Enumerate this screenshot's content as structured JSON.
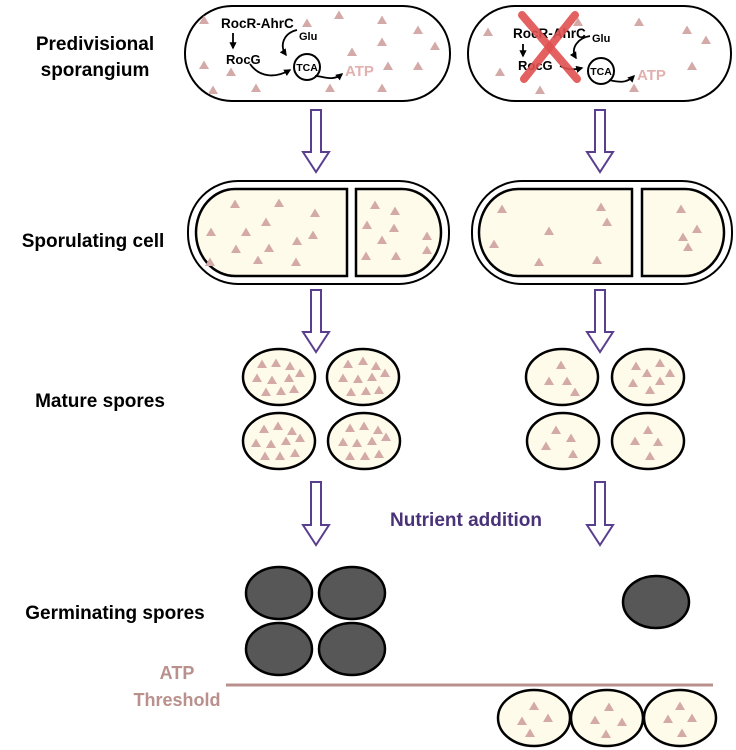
{
  "row_labels": {
    "predivisional_line1": "Predivisional",
    "predivisional_line2": "sporangium",
    "sporulating": "Sporulating cell",
    "mature": "Mature spores",
    "germinating": "Germinating spores"
  },
  "pathway": {
    "regulator": "RocR-AhrC",
    "enzyme": "RocG",
    "substrate": "Glu",
    "cycle": "TCA",
    "product": "ATP"
  },
  "nutrient_label": "Nutrient addition",
  "threshold_line1": "ATP",
  "threshold_line2": "Threshold",
  "colors": {
    "cell_fill": "#fefbea",
    "triangle": "#d4aaa8",
    "arrow": "#5b3f8f",
    "cross": "#e05050",
    "germinated": "#575757",
    "threshold": "#b9908c",
    "nutrient_text": "#4a3278",
    "atp_text": "#e2b0ae"
  }
}
